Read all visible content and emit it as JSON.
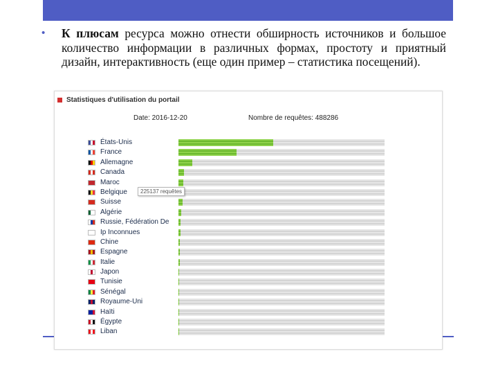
{
  "slide": {
    "accent_color": "#4f5dc4",
    "bullet_bold": "К плюсам",
    "bullet_rest": " ресурса можно отнести обширность источников и большое количество информации в различных формах, простоту и приятный дизайн, интерактивность (еще один пример – статистика посещений)."
  },
  "panel": {
    "title": "Statistiques d'utilisation du portail",
    "date_text": "Date: 2016-12-20",
    "requests_text": "Nombre de requêtes: 488286",
    "tooltip": "225137 requêtes"
  },
  "chart_data": {
    "type": "bar",
    "orientation": "horizontal",
    "title": "Statistiques d'utilisation du portail",
    "categories": [
      "États-Unis",
      "France",
      "Allemagne",
      "Canada",
      "Maroc",
      "Belgique",
      "Suisse",
      "Algérie",
      "Russie, Fédération De",
      "Ip Inconnues",
      "Chine",
      "Espagne",
      "Italie",
      "Japon",
      "Tunisie",
      "Sénégal",
      "Royaume-Uni",
      "Haïti",
      "Égypte",
      "Liban"
    ],
    "values": [
      225137,
      138000,
      32000,
      12800,
      11500,
      10500,
      9200,
      7000,
      5400,
      4500,
      3900,
      3300,
      2800,
      2300,
      1900,
      1500,
      1200,
      900,
      700,
      500
    ],
    "xlim": [
      0,
      488286
    ],
    "bar_color": "#7cc63c",
    "flags": [
      [
        "#3c4f9a",
        "#ffffff",
        "#c8102e"
      ],
      [
        "#0055a4",
        "#ffffff",
        "#ef4135"
      ],
      [
        "#111111",
        "#dd0000",
        "#ffce00"
      ],
      [
        "#d52b1e",
        "#ffffff",
        "#d52b1e"
      ],
      [
        "#c1272d",
        "#c1272d",
        "#c1272d"
      ],
      [
        "#111111",
        "#fdda24",
        "#ef3340"
      ],
      [
        "#d52b1e",
        "#d52b1e",
        "#d52b1e"
      ],
      [
        "#006233",
        "#ffffff",
        "#ffffff"
      ],
      [
        "#ffffff",
        "#0039a6",
        "#d52b1e"
      ],
      [
        "#ffffff",
        "#ffffff",
        "#ffffff"
      ],
      [
        "#de2910",
        "#de2910",
        "#de2910"
      ],
      [
        "#aa151b",
        "#f1bf00",
        "#aa151b"
      ],
      [
        "#009246",
        "#ffffff",
        "#ce2b37"
      ],
      [
        "#ffffff",
        "#bc002d",
        "#ffffff"
      ],
      [
        "#e70013",
        "#e70013",
        "#e70013"
      ],
      [
        "#00853f",
        "#fdef42",
        "#e31b23"
      ],
      [
        "#012169",
        "#c8102e",
        "#012169"
      ],
      [
        "#00209f",
        "#00209f",
        "#d21034"
      ],
      [
        "#ce1126",
        "#ffffff",
        "#111111"
      ],
      [
        "#ee161f",
        "#ffffff",
        "#ee161f"
      ]
    ]
  }
}
